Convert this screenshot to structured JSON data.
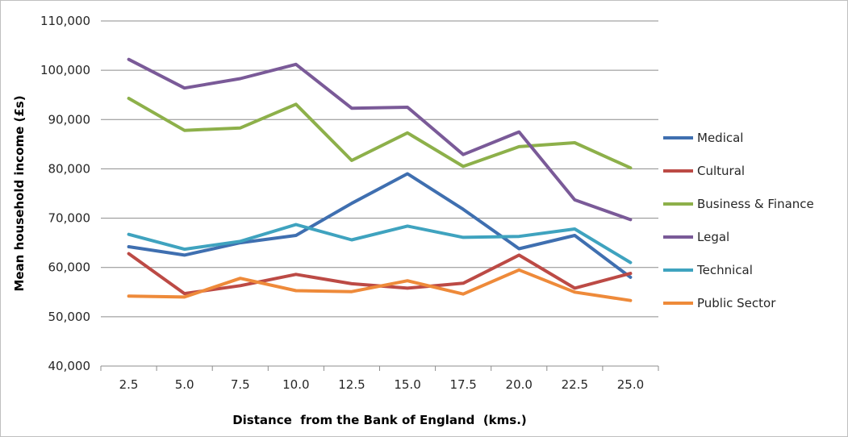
{
  "chart_data": {
    "type": "line",
    "title": "",
    "xlabel": "Distance  from the Bank of England  (kms.)",
    "ylabel": "Mean household income (£s)",
    "x": [
      "2.5",
      "5.0",
      "7.5",
      "10.0",
      "12.5",
      "15.0",
      "17.5",
      "20.0",
      "22.5",
      "25.0"
    ],
    "ylim": [
      40000,
      110000
    ],
    "yticks": [
      40000,
      50000,
      60000,
      70000,
      80000,
      90000,
      100000,
      110000
    ],
    "ytick_labels": [
      "40,000",
      "50,000",
      "60,000",
      "70,000",
      "80,000",
      "90,000",
      "100,000",
      "110,000"
    ],
    "grid": true,
    "legend_position": "right",
    "series": [
      {
        "name": "Medical",
        "color": "#3f6fb0",
        "values": [
          64200,
          62500,
          65000,
          66500,
          73000,
          79000,
          71800,
          63800,
          66500,
          58000
        ]
      },
      {
        "name": "Cultural",
        "color": "#bc4a45",
        "values": [
          62800,
          54700,
          56300,
          58600,
          56700,
          55800,
          56800,
          62500,
          55800,
          58800
        ]
      },
      {
        "name": "Business & Finance",
        "color": "#8db04a",
        "values": [
          94300,
          87800,
          88300,
          93100,
          81700,
          87300,
          80500,
          84500,
          85300,
          80200
        ]
      },
      {
        "name": "Legal",
        "color": "#7a5a98",
        "values": [
          102200,
          96400,
          98300,
          101200,
          92300,
          92500,
          82900,
          87500,
          73700,
          69700
        ]
      },
      {
        "name": "Technical",
        "color": "#3fa3bf",
        "values": [
          66700,
          63700,
          65300,
          68700,
          65600,
          68400,
          66100,
          66300,
          67800,
          61000
        ]
      },
      {
        "name": "Public Sector",
        "color": "#ee8a3a",
        "values": [
          54200,
          54000,
          57800,
          55300,
          55100,
          57300,
          54600,
          59500,
          55000,
          53300
        ]
      }
    ]
  }
}
